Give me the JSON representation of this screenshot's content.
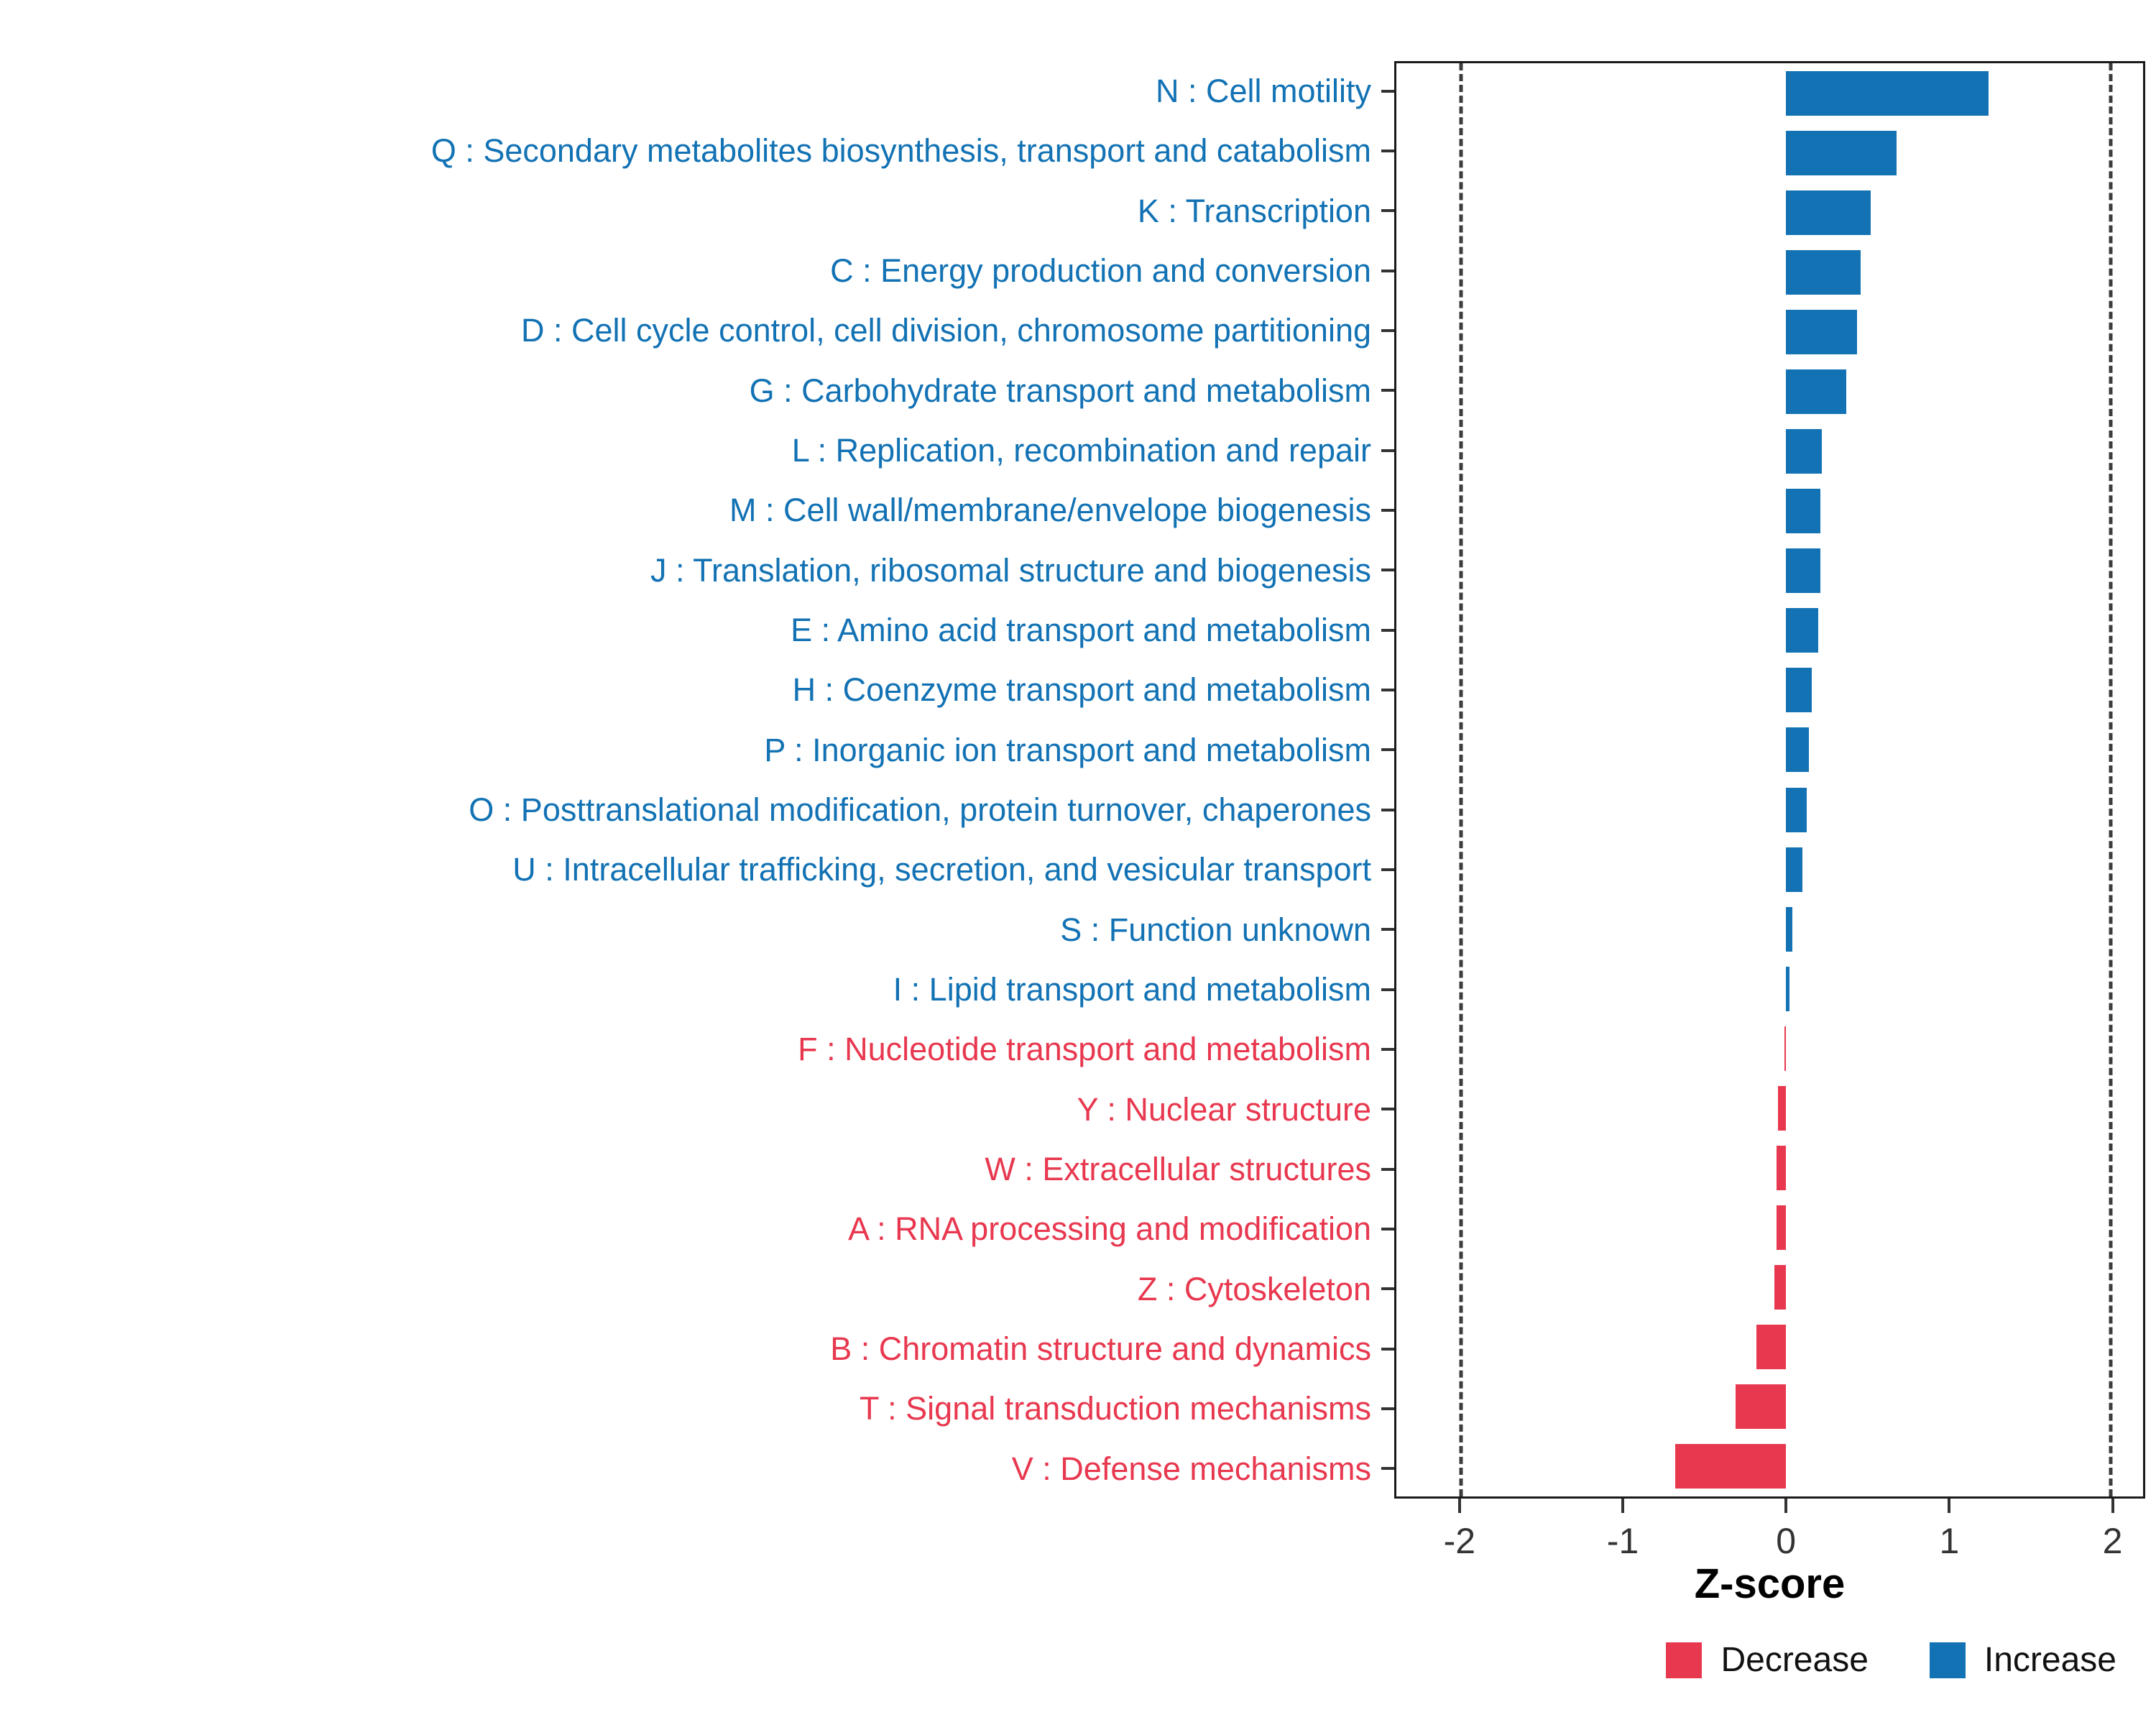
{
  "colors": {
    "increase": "#1272B4",
    "decrease": "#E8384F",
    "axis_text": "#333333",
    "panel_border": "#1a1a1a",
    "reference_line": "#3c3c3c"
  },
  "chart_data": {
    "type": "bar",
    "orientation": "horizontal",
    "title": "",
    "xlabel": "Z-score",
    "xlim": [
      -2.4,
      2.2
    ],
    "x_ticks": [
      -2,
      -1,
      0,
      1,
      2
    ],
    "reference_lines": [
      -2,
      2
    ],
    "grid": false,
    "legend_position": "bottom-right",
    "categories": [
      "N : Cell motility",
      "Q : Secondary metabolites biosynthesis, transport and catabolism",
      "K : Transcription",
      "C : Energy production and conversion",
      "D : Cell cycle control, cell division, chromosome partitioning",
      "G : Carbohydrate transport and metabolism",
      "L : Replication, recombination and repair",
      "M : Cell wall/membrane/envelope biogenesis",
      "J : Translation, ribosomal structure and biogenesis",
      "E : Amino acid transport and metabolism",
      "H : Coenzyme transport and metabolism",
      "P : Inorganic ion transport and metabolism",
      "O : Posttranslational modification, protein turnover, chaperones",
      "U : Intracellular trafficking, secretion, and vesicular transport",
      "S : Function unknown",
      "I : Lipid transport and metabolism",
      "F : Nucleotide transport and metabolism",
      "Y : Nuclear structure",
      "W : Extracellular structures",
      "A : RNA processing and modification",
      "Z : Cytoskeleton",
      "B : Chromatin structure and dynamics",
      "T : Signal transduction mechanisms",
      "V : Defense mechanisms"
    ],
    "values": [
      1.25,
      0.68,
      0.52,
      0.46,
      0.44,
      0.37,
      0.22,
      0.21,
      0.21,
      0.2,
      0.16,
      0.14,
      0.13,
      0.1,
      0.04,
      0.02,
      -0.01,
      -0.05,
      -0.06,
      -0.06,
      -0.07,
      -0.18,
      -0.31,
      -0.68
    ],
    "legend": [
      {
        "label": "Decrease",
        "color": "#E8384F"
      },
      {
        "label": "Increase",
        "color": "#1272B4"
      }
    ]
  }
}
